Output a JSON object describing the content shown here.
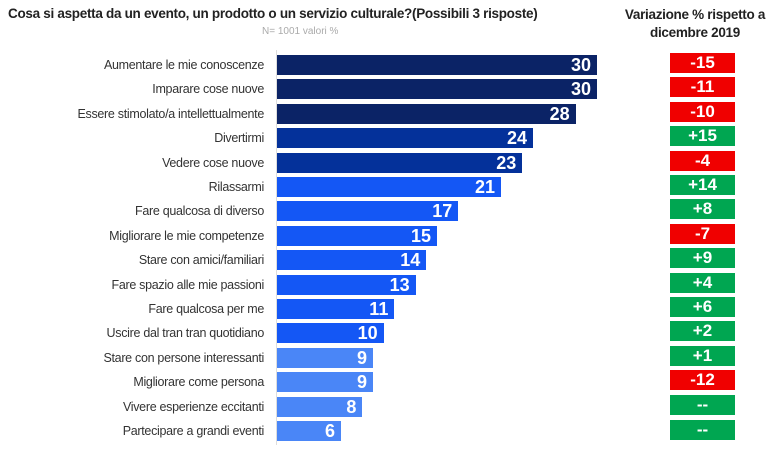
{
  "chart_data": {
    "type": "bar",
    "orientation": "horizontal",
    "title": "Cosa si aspetta da un evento, un prodotto o un servizio culturale?(Possibili 3 risposte)",
    "subtitle": "N= 1001 valori %",
    "categories": [
      "Aumentare le mie conoscenze",
      "Imparare cose nuove",
      "Essere stimolato/a intellettualmente",
      "Divertirmi",
      "Vedere cose nuove",
      "Rilassarmi",
      "Fare qualcosa di diverso",
      "Migliorare le mie competenze",
      "Stare con amici/familiari",
      "Fare spazio alle mie passioni",
      "Fare qualcosa per me",
      "Uscire dal tran tran quotidiano",
      "Stare con persone interessanti",
      "Migliorare come persona",
      "Vivere esperienze eccitanti",
      "Partecipare a grandi eventi"
    ],
    "values": [
      30,
      30,
      28,
      24,
      23,
      21,
      17,
      15,
      14,
      13,
      11,
      10,
      9,
      9,
      8,
      6
    ],
    "change_title": "Variazione % rispetto a dicembre 2019",
    "changes": [
      "-15",
      "-11",
      "-10",
      "+15",
      "-4",
      "+14",
      "+8",
      "-7",
      "+9",
      "+4",
      "+6",
      "+2",
      "+1",
      "-12",
      "--",
      "--"
    ],
    "xlim": [
      0,
      30
    ],
    "grid": false,
    "colors": {
      "navy": "#0b2366",
      "dark_blue": "#04319a",
      "blue": "#1457f5",
      "light_blue": "#4a86f7",
      "positive": "#00a651",
      "negative": "#f00000"
    },
    "bar_color_groups": [
      "navy",
      "navy",
      "navy",
      "dark_blue",
      "dark_blue",
      "blue",
      "blue",
      "blue",
      "blue",
      "blue",
      "blue",
      "blue",
      "light_blue",
      "light_blue",
      "light_blue",
      "light_blue"
    ]
  }
}
